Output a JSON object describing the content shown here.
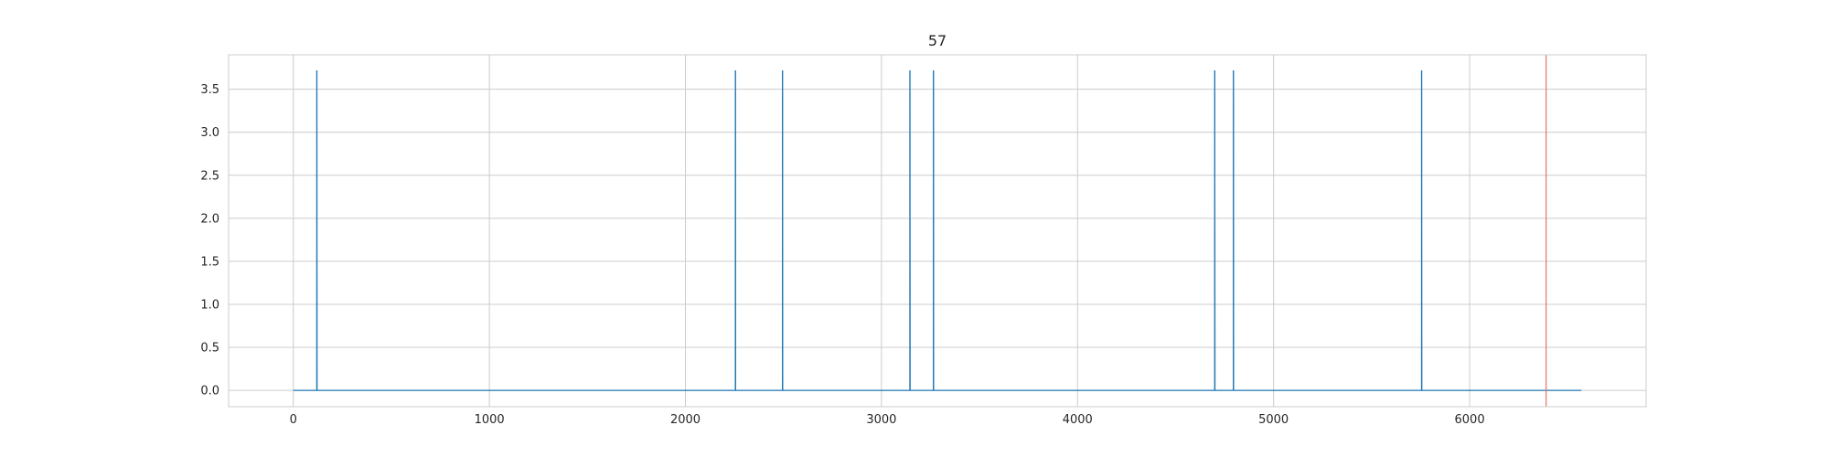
{
  "chart_data": {
    "type": "line",
    "title": "57",
    "xlabel": "",
    "ylabel": "",
    "xlim": [
      -330,
      6900
    ],
    "ylim": [
      -0.19,
      3.9
    ],
    "x_ticks": [
      0,
      1000,
      2000,
      3000,
      4000,
      5000,
      6000
    ],
    "y_ticks": [
      0.0,
      0.5,
      1.0,
      1.5,
      2.0,
      2.5,
      3.0,
      3.5
    ],
    "x_tick_labels": [
      "0",
      "1000",
      "2000",
      "3000",
      "4000",
      "5000",
      "6000"
    ],
    "y_tick_labels": [
      "0.0",
      "0.5",
      "1.0",
      "1.5",
      "2.0",
      "2.5",
      "3.0",
      "3.5"
    ],
    "grid": true,
    "series": [
      {
        "color": "#1f77b4",
        "x_range": [
          0,
          6570
        ],
        "baseline": 0,
        "spike_value": 3.72,
        "spike_x": [
          120,
          2255,
          2495,
          3145,
          3265,
          4700,
          4795,
          5755
        ]
      }
    ],
    "vertical_line": {
      "x": 6390,
      "color": "#e8706a"
    }
  }
}
